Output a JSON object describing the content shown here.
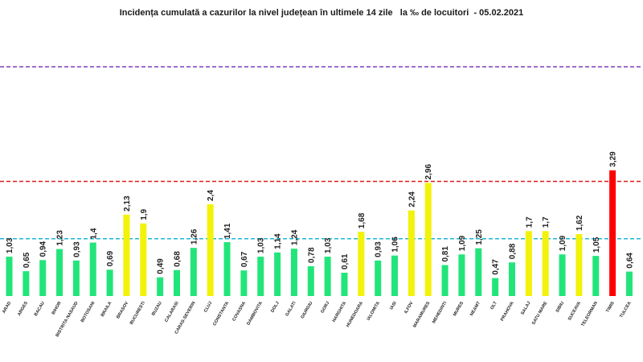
{
  "chart_data": {
    "type": "bar",
    "title": "Incidența cumulată a cazurilor la nivel județean în ultimele 14 zile   la ‰ de locuitori  - 05.02.2021",
    "xlabel": "",
    "ylabel": "",
    "ylim": [
      0,
      6.6
    ],
    "categories": [
      "ARAD",
      "ARGES",
      "BACAU",
      "BIHOR",
      "BISTRITA NASAUD",
      "BOTOSANI",
      "BRAILA",
      "BRASOV",
      "BUCURESTI",
      "BUZAU",
      "CALARASI",
      "CARAS-SEVERIN",
      "CLUJ",
      "CONSTANTA",
      "COVASNA",
      "DAMBOVITA",
      "DOLJ",
      "GALATI",
      "GIURGIU",
      "GORJ",
      "HARGHITA",
      "HUNEDOARA",
      "IALOMITA",
      "IASI",
      "ILFOV",
      "MARAMURES",
      "MEHEDINTI",
      "MURES",
      "NEAMT",
      "OLT",
      "PRAHOVA",
      "SALAJ",
      "SATU MARE",
      "SIBIU",
      "SUCEAVA",
      "TELEORMAN",
      "TIMIS",
      "TULCEA"
    ],
    "values": [
      1.03,
      0.65,
      0.94,
      1.23,
      0.93,
      1.4,
      0.69,
      2.13,
      1.9,
      0.49,
      0.68,
      1.26,
      2.4,
      1.41,
      0.67,
      1.03,
      1.14,
      1.24,
      0.78,
      1.03,
      0.61,
      1.68,
      0.93,
      1.06,
      2.24,
      2.96,
      0.81,
      1.09,
      1.25,
      0.47,
      0.88,
      1.7,
      1.7,
      1.09,
      1.62,
      1.05,
      3.29,
      0.64
    ],
    "value_labels": [
      "1,03",
      "0,65",
      "0,94",
      "1,23",
      "0,93",
      "1,4",
      "0,69",
      "2,13",
      "1,9",
      "0,49",
      "0,68",
      "1,26",
      "2,4",
      "1,41",
      "0,67",
      "1,03",
      "1,14",
      "1,24",
      "0,78",
      "1,03",
      "0,61",
      "1,68",
      "0,93",
      "1,06",
      "2,24",
      "2,96",
      "0,81",
      "1,09",
      "1,25",
      "0,47",
      "0,88",
      "1,7",
      "1,7",
      "1,09",
      "1,62",
      "1,05",
      "3,29",
      "0,64"
    ],
    "thresholds": [
      {
        "value": 1.5,
        "color": "#1fb7d6",
        "style": "dashed"
      },
      {
        "value": 3.0,
        "color": "#e01b1b",
        "style": "dashed"
      },
      {
        "value": 6.0,
        "color": "#7b3fbf",
        "style": "dashed"
      }
    ],
    "colors": {
      "low": "#22e57a",
      "mid": "#f2f20a",
      "high": "#ff0000"
    },
    "color_rule": {
      "mid_from": 1.5,
      "high_from": 3.0
    }
  }
}
